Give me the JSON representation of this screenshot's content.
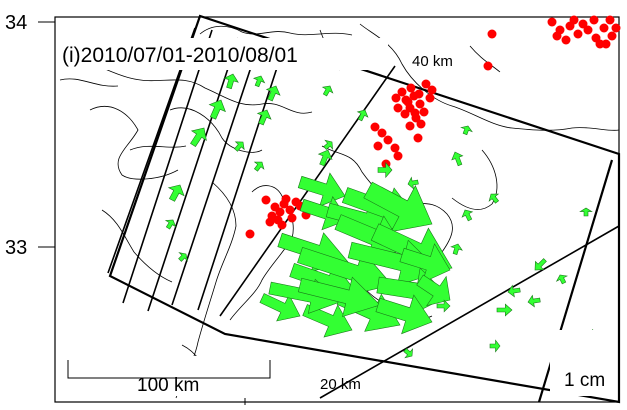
{
  "panel_title": "(i)2010/07/01-2010/08/01",
  "axis": {
    "lat_ticks": [
      "34",
      "33"
    ]
  },
  "labels": {
    "depth_40": "40 km",
    "depth_20": "20 km",
    "scale_bar": "100 km",
    "vector_scale": "1 cm"
  },
  "colors": {
    "vector": "#33ff33",
    "vector_outline": "#1a7a1a",
    "earthquake": "#ff0000",
    "frame": "#000000",
    "coast": "#000000"
  },
  "legend": {
    "vector_scale_value_cm": 1,
    "scale_bar_value_km": 100
  }
}
